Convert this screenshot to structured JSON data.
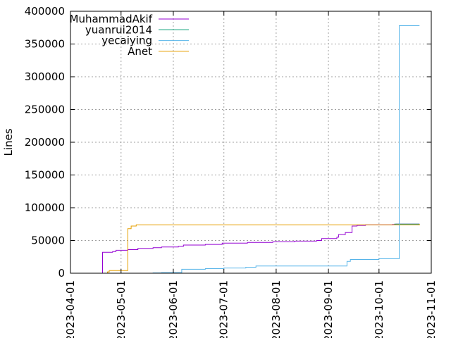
{
  "chart_data": {
    "type": "line",
    "title": "",
    "xlabel": "",
    "ylabel": "Lines",
    "ylim": [
      0,
      400000
    ],
    "xlim": [
      "2023-04-01",
      "2023-11-01"
    ],
    "grid": true,
    "legend_position": "top-left",
    "x_ticks": [
      "2023-04-01",
      "2023-05-01",
      "2023-06-01",
      "2023-07-01",
      "2023-08-01",
      "2023-09-01",
      "2023-10-01",
      "2023-11-01"
    ],
    "y_ticks": [
      "0",
      "50000",
      "100000",
      "150000",
      "200000",
      "250000",
      "300000",
      "350000",
      "400000"
    ],
    "series": [
      {
        "name": "MuhammadAkif",
        "color": "#9400d3",
        "points": [
          [
            "2023-04-13",
            0
          ],
          [
            "2023-04-20",
            32000
          ],
          [
            "2023-04-26",
            33000
          ],
          [
            "2023-04-28",
            35000
          ],
          [
            "2023-05-05",
            36000
          ],
          [
            "2023-05-11",
            38000
          ],
          [
            "2023-05-20",
            39000
          ],
          [
            "2023-05-25",
            40000
          ],
          [
            "2023-06-04",
            41000
          ],
          [
            "2023-06-07",
            43000
          ],
          [
            "2023-06-20",
            44000
          ],
          [
            "2023-06-30",
            46000
          ],
          [
            "2023-07-15",
            47000
          ],
          [
            "2023-07-30",
            48000
          ],
          [
            "2023-08-12",
            49000
          ],
          [
            "2023-08-25",
            50000
          ],
          [
            "2023-08-28",
            53000
          ],
          [
            "2023-09-06",
            55000
          ],
          [
            "2023-09-07",
            59000
          ],
          [
            "2023-09-11",
            62000
          ],
          [
            "2023-09-15",
            72000
          ],
          [
            "2023-09-18",
            73000
          ],
          [
            "2023-09-23",
            74000
          ],
          [
            "2023-10-09",
            74500
          ],
          [
            "2023-10-11",
            75000
          ],
          [
            "2023-10-25",
            75000
          ]
        ]
      },
      {
        "name": "yuanrui2014",
        "color": "#009e73",
        "points": [
          [
            "2023-10-10",
            75000
          ],
          [
            "2023-10-25",
            75000
          ]
        ]
      },
      {
        "name": "yecaiying",
        "color": "#56b4e9",
        "points": [
          [
            "2023-05-13",
            0
          ],
          [
            "2023-05-20",
            500
          ],
          [
            "2023-05-25",
            1000
          ],
          [
            "2023-06-03",
            1000
          ],
          [
            "2023-06-06",
            6000
          ],
          [
            "2023-06-20",
            7000
          ],
          [
            "2023-07-01",
            8000
          ],
          [
            "2023-07-14",
            9000
          ],
          [
            "2023-07-20",
            11000
          ],
          [
            "2023-08-15",
            11000
          ],
          [
            "2023-09-05",
            11000
          ],
          [
            "2023-09-12",
            18000
          ],
          [
            "2023-09-14",
            21000
          ],
          [
            "2023-10-01",
            22000
          ],
          [
            "2023-10-12",
            22000
          ],
          [
            "2023-10-13",
            378000
          ],
          [
            "2023-10-25",
            378000
          ]
        ]
      },
      {
        "name": "Anet",
        "color": "#e69f00",
        "points": [
          [
            "2023-04-22",
            0
          ],
          [
            "2023-04-23",
            2000
          ],
          [
            "2023-04-24",
            4000
          ],
          [
            "2023-05-04",
            4000
          ],
          [
            "2023-05-05",
            68000
          ],
          [
            "2023-05-07",
            72000
          ],
          [
            "2023-05-10",
            74000
          ],
          [
            "2023-10-25",
            75000
          ]
        ]
      }
    ]
  }
}
